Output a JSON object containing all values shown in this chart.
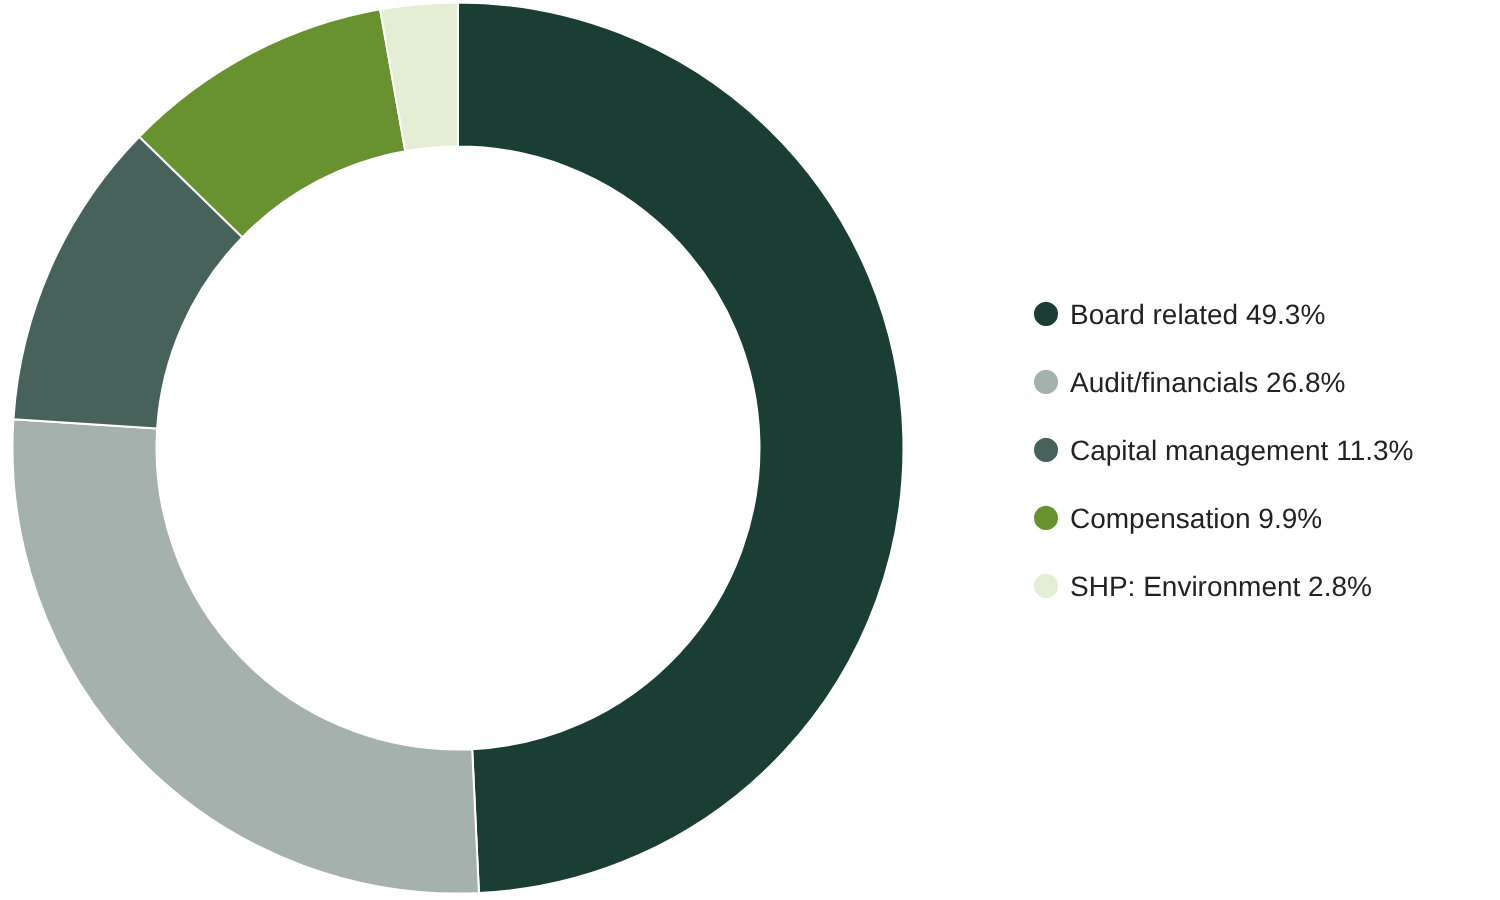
{
  "chart_data": {
    "type": "donut",
    "categories": [
      "Board related",
      "Audit/financials",
      "Capital management",
      "Compensation",
      "SHP: Environment"
    ],
    "values": [
      49.3,
      26.8,
      11.3,
      9.9,
      2.8
    ],
    "value_labels": [
      "49.3%",
      "26.8%",
      "11.3%",
      "9.9%",
      "2.8%"
    ],
    "colors": [
      "#1b3e34",
      "#a4b1ac",
      "#47625a",
      "#67922f",
      "#e3eed4"
    ],
    "legend": "right"
  }
}
